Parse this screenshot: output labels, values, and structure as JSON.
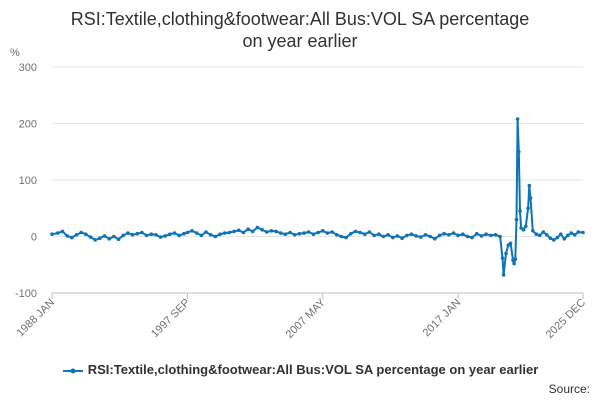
{
  "title_line1": "RSI:Textile,clothing&footwear:All Bus:VOL SA percentage",
  "title_line2": "on year earlier",
  "source_label": "Source:",
  "chart_data": {
    "type": "line",
    "title": "RSI:Textile,clothing&footwear:All Bus:VOL SA percentage on year earlier",
    "ylabel": "%",
    "xlabel": "",
    "ylim": [
      -100,
      300
    ],
    "yticks": [
      -100,
      0,
      100,
      200,
      300
    ],
    "xticks": [
      "1988 JAN",
      "1997 SEP",
      "2007 MAY",
      "2017 JAN",
      "2025 DEC"
    ],
    "grid": true,
    "legend_position": "bottom",
    "color": "#0f73b7",
    "series": [
      {
        "name": "RSI:Textile,clothing&footwear:All Bus:VOL SA percentage on year earlier",
        "points": [
          [
            "1988-01",
            4
          ],
          [
            "1988-06",
            6
          ],
          [
            "1988-10",
            9
          ],
          [
            "1989-02",
            1
          ],
          [
            "1989-06",
            -2
          ],
          [
            "1989-10",
            3
          ],
          [
            "1990-02",
            7
          ],
          [
            "1990-06",
            4
          ],
          [
            "1990-10",
            -1
          ],
          [
            "1991-02",
            -6
          ],
          [
            "1991-06",
            -3
          ],
          [
            "1991-10",
            1
          ],
          [
            "1992-02",
            -4
          ],
          [
            "1992-06",
            0
          ],
          [
            "1992-10",
            -5
          ],
          [
            "1993-02",
            2
          ],
          [
            "1993-06",
            6
          ],
          [
            "1993-10",
            3
          ],
          [
            "1994-02",
            5
          ],
          [
            "1994-06",
            7
          ],
          [
            "1994-10",
            2
          ],
          [
            "1995-02",
            4
          ],
          [
            "1995-06",
            3
          ],
          [
            "1995-10",
            -1
          ],
          [
            "1996-02",
            1
          ],
          [
            "1996-06",
            4
          ],
          [
            "1996-10",
            6
          ],
          [
            "1997-02",
            2
          ],
          [
            "1997-06",
            5
          ],
          [
            "1997-09",
            7
          ],
          [
            "1998-01",
            10
          ],
          [
            "1998-05",
            6
          ],
          [
            "1998-09",
            2
          ],
          [
            "1999-01",
            8
          ],
          [
            "1999-05",
            3
          ],
          [
            "1999-09",
            0
          ],
          [
            "2000-01",
            4
          ],
          [
            "2000-05",
            6
          ],
          [
            "2000-09",
            7
          ],
          [
            "2001-01",
            9
          ],
          [
            "2001-05",
            11
          ],
          [
            "2001-09",
            7
          ],
          [
            "2002-01",
            13
          ],
          [
            "2002-05",
            9
          ],
          [
            "2002-09",
            16
          ],
          [
            "2003-01",
            12
          ],
          [
            "2003-05",
            8
          ],
          [
            "2003-09",
            10
          ],
          [
            "2004-01",
            9
          ],
          [
            "2004-05",
            6
          ],
          [
            "2004-09",
            4
          ],
          [
            "2005-01",
            7
          ],
          [
            "2005-05",
            3
          ],
          [
            "2005-09",
            5
          ],
          [
            "2006-01",
            6
          ],
          [
            "2006-05",
            8
          ],
          [
            "2006-09",
            4
          ],
          [
            "2007-01",
            7
          ],
          [
            "2007-05",
            10
          ],
          [
            "2007-09",
            6
          ],
          [
            "2008-01",
            8
          ],
          [
            "2008-05",
            3
          ],
          [
            "2008-09",
            0
          ],
          [
            "2009-01",
            -2
          ],
          [
            "2009-05",
            5
          ],
          [
            "2009-09",
            9
          ],
          [
            "2010-01",
            7
          ],
          [
            "2010-05",
            4
          ],
          [
            "2010-09",
            8
          ],
          [
            "2011-01",
            2
          ],
          [
            "2011-05",
            4
          ],
          [
            "2011-09",
            0
          ],
          [
            "2012-01",
            3
          ],
          [
            "2012-05",
            -2
          ],
          [
            "2012-09",
            1
          ],
          [
            "2013-01",
            -3
          ],
          [
            "2013-05",
            2
          ],
          [
            "2013-09",
            4
          ],
          [
            "2014-01",
            1
          ],
          [
            "2014-05",
            -1
          ],
          [
            "2014-09",
            3
          ],
          [
            "2015-01",
            0
          ],
          [
            "2015-05",
            -4
          ],
          [
            "2015-09",
            2
          ],
          [
            "2016-01",
            5
          ],
          [
            "2016-05",
            3
          ],
          [
            "2016-09",
            6
          ],
          [
            "2017-01",
            2
          ],
          [
            "2017-05",
            4
          ],
          [
            "2017-09",
            0
          ],
          [
            "2018-01",
            -2
          ],
          [
            "2018-05",
            5
          ],
          [
            "2018-09",
            1
          ],
          [
            "2019-01",
            4
          ],
          [
            "2019-05",
            2
          ],
          [
            "2019-09",
            3
          ],
          [
            "2020-01",
            0
          ],
          [
            "2020-03",
            -38
          ],
          [
            "2020-04",
            -68
          ],
          [
            "2020-06",
            -30
          ],
          [
            "2020-08",
            -15
          ],
          [
            "2020-10",
            -12
          ],
          [
            "2020-12",
            -42
          ],
          [
            "2021-01",
            -48
          ],
          [
            "2021-02",
            -40
          ],
          [
            "2021-03",
            30
          ],
          [
            "2021-04",
            208
          ],
          [
            "2021-05",
            150
          ],
          [
            "2021-06",
            45
          ],
          [
            "2021-07",
            15
          ],
          [
            "2021-09",
            12
          ],
          [
            "2021-11",
            18
          ],
          [
            "2022-01",
            50
          ],
          [
            "2022-02",
            90
          ],
          [
            "2022-03",
            68
          ],
          [
            "2022-05",
            10
          ],
          [
            "2022-08",
            4
          ],
          [
            "2022-11",
            2
          ],
          [
            "2023-02",
            8
          ],
          [
            "2023-05",
            3
          ],
          [
            "2023-08",
            -3
          ],
          [
            "2023-11",
            -6
          ],
          [
            "2024-02",
            -2
          ],
          [
            "2024-05",
            4
          ],
          [
            "2024-08",
            -4
          ],
          [
            "2024-11",
            2
          ],
          [
            "2025-02",
            6
          ],
          [
            "2025-05",
            3
          ],
          [
            "2025-08",
            8
          ],
          [
            "2025-12",
            7
          ]
        ]
      }
    ]
  }
}
